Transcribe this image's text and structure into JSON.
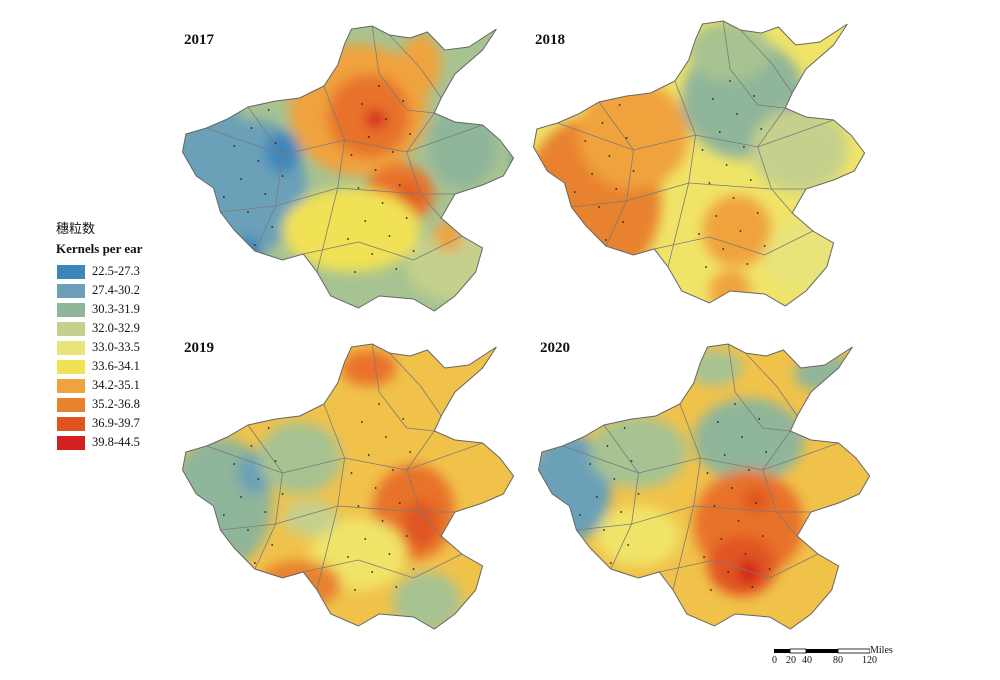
{
  "panels": [
    {
      "year": "2017",
      "base": "#a7c391",
      "blobs": [
        [
          "#6ba0b8",
          0.05,
          0.4,
          0.14,
          0.2
        ],
        [
          "#6ba0b8",
          0.22,
          0.55,
          0.15,
          0.22
        ],
        [
          "#3c86bc",
          0.3,
          0.44,
          0.05,
          0.07
        ],
        [
          "#3c86bc",
          0.2,
          0.78,
          0.04,
          0.06
        ],
        [
          "#f0a33c",
          0.52,
          0.3,
          0.2,
          0.22
        ],
        [
          "#e8722b",
          0.55,
          0.32,
          0.12,
          0.14
        ],
        [
          "#d21f1f",
          0.57,
          0.33,
          0.03,
          0.03
        ],
        [
          "#e8722b",
          0.64,
          0.58,
          0.1,
          0.1
        ],
        [
          "#e05420",
          0.66,
          0.6,
          0.04,
          0.05
        ],
        [
          "#f1e154",
          0.5,
          0.7,
          0.2,
          0.14
        ],
        [
          "#f0a33c",
          0.7,
          0.15,
          0.06,
          0.1
        ],
        [
          "#c5d08c",
          0.82,
          0.82,
          0.16,
          0.12
        ],
        [
          "#8fb59a",
          0.82,
          0.42,
          0.1,
          0.14
        ],
        [
          "#f0a33c",
          0.78,
          0.72,
          0.04,
          0.05
        ],
        [
          "#3c86bc",
          0.99,
          0.46,
          0.02,
          0.04
        ]
      ]
    },
    {
      "year": "2018",
      "base": "#f0e468",
      "blobs": [
        [
          "#e8822e",
          0.18,
          0.62,
          0.2,
          0.28
        ],
        [
          "#f0a33c",
          0.3,
          0.4,
          0.16,
          0.18
        ],
        [
          "#8fb59a",
          0.62,
          0.28,
          0.18,
          0.2
        ],
        [
          "#a7c391",
          0.58,
          0.12,
          0.12,
          0.1
        ],
        [
          "#c5d08c",
          0.78,
          0.45,
          0.14,
          0.14
        ],
        [
          "#f0a33c",
          0.6,
          0.72,
          0.1,
          0.12
        ],
        [
          "#e8e47a",
          0.8,
          0.8,
          0.12,
          0.12
        ],
        [
          "#f0a33c",
          0.58,
          0.92,
          0.06,
          0.07
        ]
      ]
    },
    {
      "year": "2019",
      "base": "#f1c24a",
      "blobs": [
        [
          "#8fb59a",
          0.12,
          0.55,
          0.15,
          0.22
        ],
        [
          "#6ba0b8",
          0.22,
          0.45,
          0.05,
          0.07
        ],
        [
          "#a7c391",
          0.35,
          0.4,
          0.12,
          0.12
        ],
        [
          "#e8722b",
          0.68,
          0.58,
          0.12,
          0.16
        ],
        [
          "#e05420",
          0.7,
          0.62,
          0.05,
          0.08
        ],
        [
          "#a7c391",
          0.72,
          0.88,
          0.1,
          0.1
        ],
        [
          "#f0e468",
          0.52,
          0.72,
          0.14,
          0.12
        ],
        [
          "#e8822e",
          0.35,
          0.82,
          0.12,
          0.08
        ],
        [
          "#c5d08c",
          0.38,
          0.6,
          0.08,
          0.06
        ],
        [
          "#e8722b",
          0.55,
          0.1,
          0.08,
          0.06
        ]
      ]
    },
    {
      "year": "2020",
      "base": "#f1c24a",
      "blobs": [
        [
          "#6ba0b8",
          0.1,
          0.5,
          0.12,
          0.18
        ],
        [
          "#a7c391",
          0.3,
          0.38,
          0.14,
          0.12
        ],
        [
          "#8fb59a",
          0.62,
          0.34,
          0.16,
          0.14
        ],
        [
          "#e8722b",
          0.62,
          0.62,
          0.16,
          0.18
        ],
        [
          "#e05420",
          0.6,
          0.76,
          0.1,
          0.1
        ],
        [
          "#d21f1f",
          0.62,
          0.78,
          0.03,
          0.04
        ],
        [
          "#e05420",
          0.64,
          0.54,
          0.04,
          0.04
        ],
        [
          "#a7c391",
          0.52,
          0.1,
          0.08,
          0.06
        ],
        [
          "#f0e468",
          0.3,
          0.66,
          0.12,
          0.1
        ],
        [
          "#8fb59a",
          0.85,
          0.12,
          0.1,
          0.06
        ]
      ]
    }
  ],
  "legend": {
    "title_cn": "穗粒数",
    "title_en": "Kernels per ear",
    "classes": [
      {
        "label": "22.5-27.3",
        "color": "#3c86bc"
      },
      {
        "label": "27.4-30.2",
        "color": "#6ba0b8"
      },
      {
        "label": "30.3-31.9",
        "color": "#8fb59a"
      },
      {
        "label": "32.0-32.9",
        "color": "#c5d08c"
      },
      {
        "label": "33.0-33.5",
        "color": "#e8e47a"
      },
      {
        "label": "33.6-34.1",
        "color": "#f1e154"
      },
      {
        "label": "34.2-35.1",
        "color": "#f0a33c"
      },
      {
        "label": "35.2-36.8",
        "color": "#e8822e"
      },
      {
        "label": "36.9-39.7",
        "color": "#e05420"
      },
      {
        "label": "39.8-44.5",
        "color": "#d21f1f"
      }
    ]
  },
  "scalebar": {
    "unit": "Miles",
    "ticks": [
      "0",
      "20",
      "40",
      "80",
      "120"
    ]
  }
}
